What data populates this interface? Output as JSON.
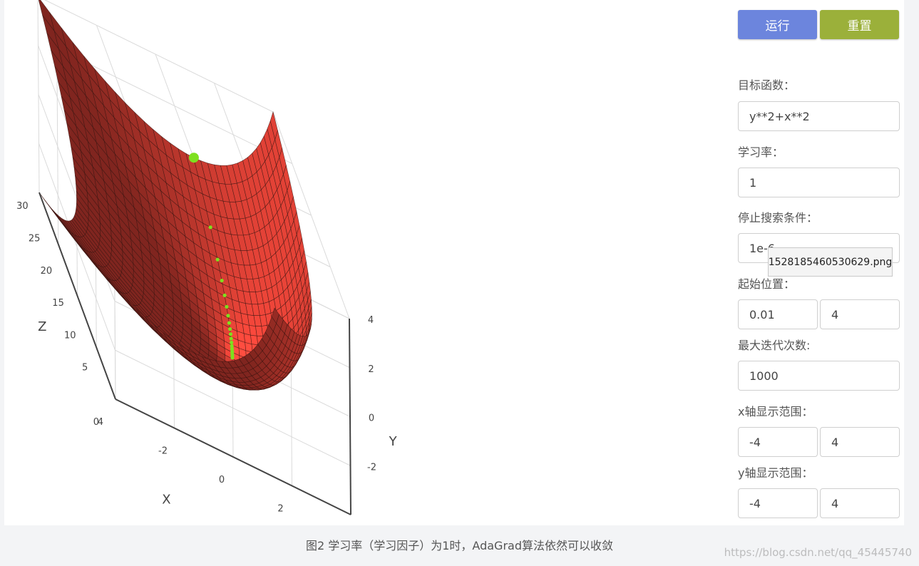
{
  "toolbar": {
    "run_label": "运行",
    "reset_label": "重置",
    "run_color": "#6c85dd",
    "reset_color": "#9bb03a"
  },
  "form": {
    "objective_label": "目标函数：",
    "objective_value": "y**2+x**2",
    "lr_label": "学习率：",
    "lr_value": "1",
    "stop_label": "停止搜索条件：",
    "stop_value": "1e-6",
    "start_label": "起始位置：",
    "start_x": "0.01",
    "start_y": "4",
    "maxiter_label": "最大迭代次数:",
    "maxiter_value": "1000",
    "xrange_label": "x轴显示范围：",
    "xrange_min": "-4",
    "xrange_max": "4",
    "yrange_label": "y轴显示范围：",
    "yrange_min": "-4",
    "yrange_max": "4"
  },
  "tooltip": "1528185460530629.png",
  "caption": "图2 学习率（学习因子）为1时，AdaGrad算法依然可以收敛",
  "watermark": "https://blog.csdn.net/qq_45445740",
  "chart_data": {
    "type": "surface",
    "title": "",
    "xlabel": "X",
    "ylabel": "Y",
    "zlabel": "Z",
    "function": "z = x^2 + y^2",
    "x_range": [
      -4,
      4
    ],
    "y_range": [
      -4,
      4
    ],
    "z_range": [
      0,
      32
    ],
    "x_ticks": [
      "-2",
      "0",
      "2"
    ],
    "y_ticks": [
      "-2",
      "0",
      "2",
      "4"
    ],
    "z_ticks": [
      "0",
      "4",
      "5",
      "10",
      "15",
      "20",
      "25",
      "30"
    ],
    "surface_color": "#ff4a3d",
    "trajectory_color": "#7ee01f",
    "trajectory": [
      {
        "x": 0.01,
        "y": 4.0,
        "z": 16.0
      },
      {
        "x": 0.0,
        "y": 3.0,
        "z": 9.0
      },
      {
        "x": 0.0,
        "y": 2.46,
        "z": 6.05
      },
      {
        "x": 0.0,
        "y": 2.07,
        "z": 4.28
      },
      {
        "x": 0.0,
        "y": 1.77,
        "z": 3.13
      },
      {
        "x": 0.0,
        "y": 1.52,
        "z": 2.31
      },
      {
        "x": 0.0,
        "y": 1.31,
        "z": 1.72
      },
      {
        "x": 0.0,
        "y": 1.13,
        "z": 1.28
      },
      {
        "x": 0.0,
        "y": 0.97,
        "z": 0.94
      },
      {
        "x": 0.0,
        "y": 0.83,
        "z": 0.69
      },
      {
        "x": 0.0,
        "y": 0.7,
        "z": 0.49
      },
      {
        "x": 0.0,
        "y": 0.58,
        "z": 0.34
      },
      {
        "x": 0.0,
        "y": 0.47,
        "z": 0.22
      },
      {
        "x": 0.0,
        "y": 0.37,
        "z": 0.14
      },
      {
        "x": 0.0,
        "y": 0.28,
        "z": 0.08
      },
      {
        "x": 0.0,
        "y": 0.2,
        "z": 0.04
      },
      {
        "x": 0.0,
        "y": 0.12,
        "z": 0.01
      },
      {
        "x": 0.0,
        "y": 0.05,
        "z": 0.0
      }
    ]
  }
}
